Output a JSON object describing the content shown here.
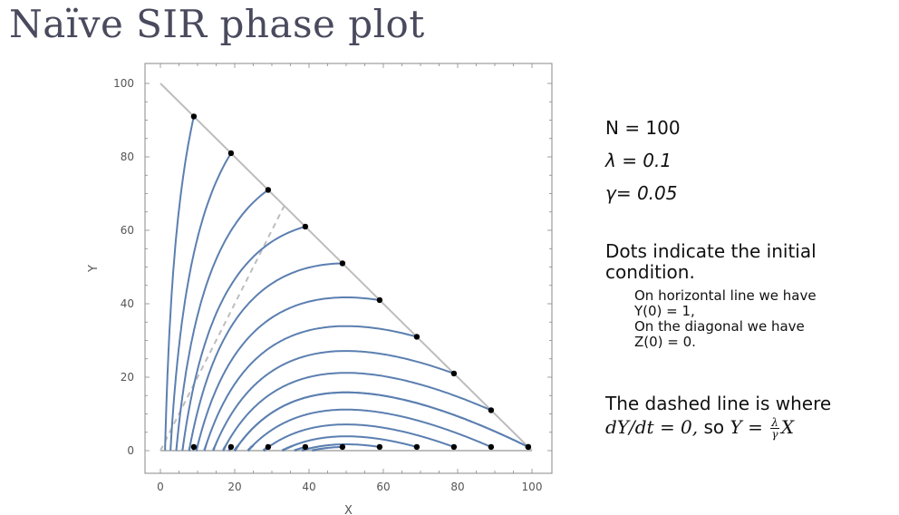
{
  "title": "Naïve SIR phase plot",
  "params": {
    "n_line": "N = 100",
    "lambda_line": "λ = 0.1",
    "gamma_line": "γ= 0.05"
  },
  "notes": {
    "dots": "Dots indicate the initial condition.",
    "horizontal_a": "On horizontal line we have",
    "horizontal_b": "Y(0) = 1,",
    "diagonal_a": "On the diagonal we have",
    "diagonal_b": "Z(0) = 0.",
    "dashed_prefix": "The dashed line is where",
    "dashed_eq": "dY/dt = 0,",
    "dashed_so": " so ",
    "dashed_y": "Y = ",
    "frac_num": "λ",
    "frac_den": "γ",
    "dashed_x": "X"
  },
  "colors": {
    "curve": "#5b7fb0",
    "guide": "#bdbdbd",
    "dot": "#000000",
    "frame": "#888888",
    "title": "#4a4a5e"
  },
  "chart_data": {
    "type": "line",
    "xlabel": "X",
    "ylabel": "Y",
    "xlim": [
      0,
      100
    ],
    "ylim": [
      0,
      100
    ],
    "xticks": [
      0,
      20,
      40,
      60,
      80,
      100
    ],
    "yticks": [
      0,
      20,
      40,
      60,
      80,
      100
    ],
    "N": 100,
    "lambda": 0.1,
    "gamma": 0.05,
    "diagonal": {
      "from": [
        0,
        100
      ],
      "to": [
        100,
        0
      ]
    },
    "nullcline": {
      "from": [
        0,
        0
      ],
      "to": [
        33.5,
        67
      ]
    },
    "initial_conditions_horizontal": [
      [
        9,
        1
      ],
      [
        19,
        1
      ],
      [
        29,
        1
      ],
      [
        39,
        1
      ],
      [
        49,
        1
      ],
      [
        59,
        1
      ],
      [
        69,
        1
      ],
      [
        79,
        1
      ],
      [
        89,
        1
      ],
      [
        99,
        1
      ]
    ],
    "initial_conditions_diagonal": [
      [
        9,
        91
      ],
      [
        19,
        81
      ],
      [
        29,
        71
      ],
      [
        39,
        61
      ],
      [
        49,
        51
      ],
      [
        59,
        41
      ],
      [
        69,
        31
      ],
      [
        79,
        21
      ],
      [
        89,
        11
      ],
      [
        99,
        1
      ]
    ]
  }
}
